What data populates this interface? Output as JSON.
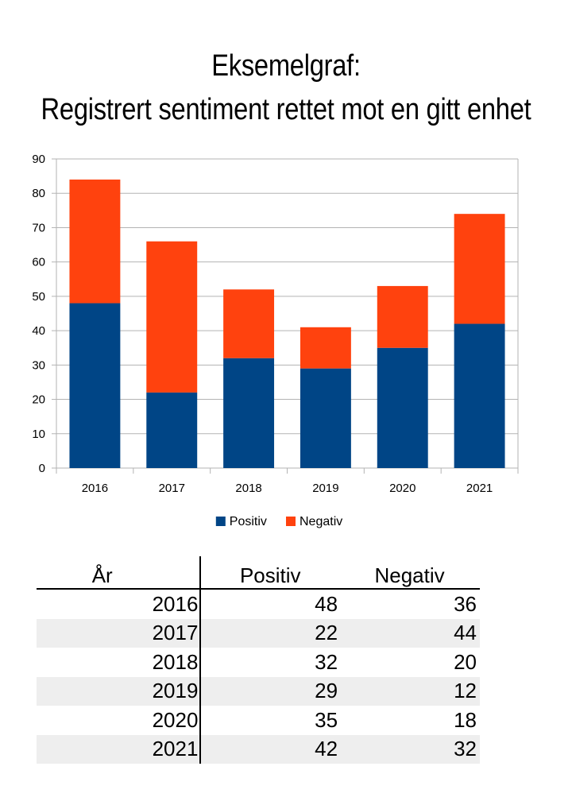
{
  "title_line1": "Eksemelgraf:",
  "title_line2": "Registrert sentiment rettet mot en gitt enhet",
  "chart_data": {
    "type": "bar",
    "stacked": true,
    "categories": [
      "2016",
      "2017",
      "2018",
      "2019",
      "2020",
      "2021"
    ],
    "series": [
      {
        "name": "Positiv",
        "values": [
          48,
          22,
          32,
          29,
          35,
          42
        ],
        "color": "#004586"
      },
      {
        "name": "Negativ",
        "values": [
          36,
          44,
          20,
          12,
          18,
          32
        ],
        "color": "#ff420e"
      }
    ],
    "ylim": [
      0,
      90
    ],
    "yticks": [
      "0",
      "10",
      "20",
      "30",
      "40",
      "50",
      "60",
      "70",
      "80",
      "90"
    ],
    "grid": true,
    "legend_position": "bottom"
  },
  "table": {
    "headers": [
      "År",
      "Positiv",
      "Negativ"
    ],
    "rows": [
      [
        "2016",
        "48",
        "36"
      ],
      [
        "2017",
        "22",
        "44"
      ],
      [
        "2018",
        "32",
        "20"
      ],
      [
        "2019",
        "29",
        "12"
      ],
      [
        "2020",
        "35",
        "18"
      ],
      [
        "2021",
        "42",
        "32"
      ]
    ]
  }
}
